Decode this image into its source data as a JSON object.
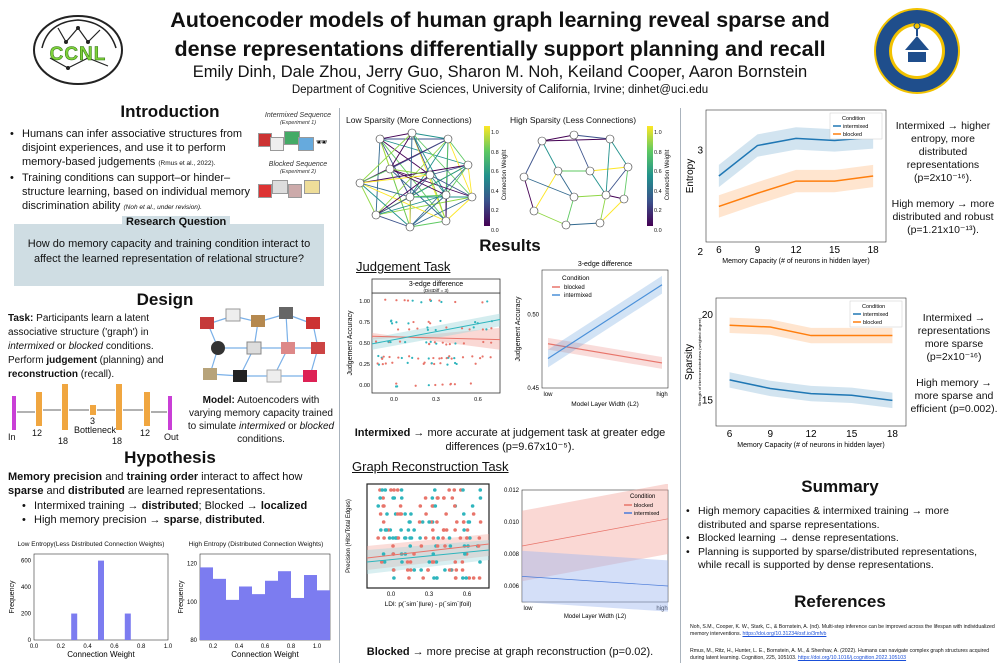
{
  "header": {
    "title_line1": "Autoencoder models of human graph learning reveal sparse and",
    "title_line2": "dense representations differentially support planning and recall",
    "authors": "Emily Dinh, Dale Zhou, Jerry Guo, Sharon M. Noh, Keiland Cooper, Aaron Bornstein",
    "affiliation": "Department of Cognitive Sciences, University of California, Irvine; dinhet@uci.edu",
    "lab_logo_text": "CCNL",
    "seal_text": "UNIVERSITY OF CALIFORNIA · IRVINE · 1965"
  },
  "intro": {
    "heading": "Introduction",
    "bullet1": "Humans can infer associative structures from disjoint experiences, and use it to perform memory-based judgements",
    "bullet1_cite": "(Rmus et al., 2022).",
    "bullet2": "Training conditions can support–or hinder–structure learning, based on individual memory discrimination ability",
    "bullet2_cite": "(Noh et al., under revision).",
    "seq1_label": "Intermixed Sequence",
    "seq1_sub": "(Experiment 1)",
    "seq2_label": "Blocked Sequence",
    "seq2_sub": "(Experiment 2)"
  },
  "research_question": {
    "label": "Research Question",
    "text": "How do memory capacity and training condition interact to affect the learned representation of relational structure?"
  },
  "design": {
    "heading": "Design",
    "task_bold": "Task:",
    "task_text": " Participants learn a latent associative structure ('graph') in ",
    "task_i1": "intermixed",
    "task_or": " or ",
    "task_i2": "blocked",
    "task_cond": " conditions. Perform ",
    "task_j": "judgement",
    "task_plan": " (planning) and ",
    "task_r": "reconstruction",
    "task_recall": " (recall).",
    "arch_labels": [
      "In",
      "12",
      "18",
      "3",
      "18",
      "12",
      "Out"
    ],
    "bottleneck": "Bottleneck",
    "model_bold": "Model:",
    "model_text": " Autoencoders with varying memory capacity trained to simulate ",
    "model_i1": "intermixed",
    "model_or": " or ",
    "model_i2": "blocked",
    "model_end": " conditions."
  },
  "hypothesis": {
    "heading": "Hypothesis",
    "lead_b1": "Memory precision",
    "lead_and": " and ",
    "lead_b2": "training order",
    "lead_rest": " interact to affect how ",
    "lead_b3": "sparse",
    "lead_and2": " and ",
    "lead_b4": "distributed",
    "lead_end": " are learned representations.",
    "h1_a": "Intermixed training → ",
    "h1_b": "distributed",
    "h1_c": "; Blocked → ",
    "h1_d": "localized",
    "h2_a": "High memory precision → ",
    "h2_b": "sparse",
    "h2_c": ", ",
    "h2_d": "distributed",
    "h2_e": "."
  },
  "hist_low": {
    "title": "Low Entropy(Less Distributed Connection Weights)",
    "xlabel": "Connection Weight",
    "ylabel": "Frequency",
    "yticks": [
      "0",
      "200",
      "400",
      "600"
    ],
    "xticks": [
      "0.0",
      "0.2",
      "0.4",
      "0.6",
      "0.8",
      "1.0"
    ]
  },
  "hist_high": {
    "title": "High Entropy (Distributed Connection Weights)",
    "xlabel": "Connection Weight",
    "ylabel": "Frequency",
    "yticks": [
      "80",
      "100",
      "120"
    ],
    "xticks": [
      "0.2",
      "0.4",
      "0.6",
      "0.8",
      "1.0"
    ]
  },
  "graphs": {
    "low_title": "Low Sparsity (More Connections)",
    "high_title": "High Sparsity (Less Connections)",
    "cbar_label": "Connection Weight",
    "cbar_ticks": [
      "0.0",
      "0.2",
      "0.4",
      "0.6",
      "0.8",
      "1.0"
    ]
  },
  "results": {
    "heading": "Results",
    "judgement_heading": "Judgement Task",
    "j_left_title1": "3-edge difference",
    "j_left_title2": "(DistDiff = 3)",
    "j_left_ylabel": "Judgement Accuracy",
    "j_right_title": "3-edge difference",
    "j_right_ylabel": "Judgement Accuracy",
    "j_right_xlabel": "Model Layer Width (L2)",
    "j_legend_title": "Condition",
    "j_legend_blocked": "blocked",
    "j_legend_intermixed": "intermixed",
    "j_conclusion_b": "Intermixed",
    "j_conclusion": " → more accurate at judgement task at greater edge differences (p=9.67x10⁻⁵).",
    "recon_heading": "Graph Reconstruction Task",
    "r_ylabel": "Precision (Hits/Total Edges)",
    "r_xlabel": "LDI: p(`sim`|lure) - p(`sim`|foil)",
    "r_right_xlabel": "Model Layer Width (L2)",
    "r_legend_title": "Condition",
    "r_legend_blocked": "blocked",
    "r_legend_intermixed": "intermixed",
    "r_conclusion_b": "Blocked",
    "r_conclusion": " → more precise at graph reconstruction (p=0.02)."
  },
  "entropy_panel": {
    "ylabel": "Entropy",
    "xlabel": "Memory Capacity (# of neurons in hidden layer)",
    "xticks": [
      "6",
      "9",
      "12",
      "15",
      "18"
    ],
    "yticks": [
      "2",
      "3"
    ],
    "legend_title": "Condition",
    "legend_intermixed": "intermixed",
    "legend_blocked": "blocked",
    "note1": "Intermixed → higher entropy, more distributed representations (p=2x10⁻¹⁶).",
    "note2": "High memory → more distributed and robust (p=1.21x10⁻¹³)."
  },
  "sparsity_panel": {
    "ylabel": "Sparsity",
    "ylabel_small": "Strength of interconnectedness (weighted degree)",
    "xlabel": "Memory Capacity (# of neurons in hidden layer)",
    "xticks": [
      "6",
      "9",
      "12",
      "15",
      "18"
    ],
    "yticks": [
      "15",
      "20"
    ],
    "legend_title": "Condition",
    "legend_intermixed": "intermixed",
    "legend_blocked": "blocked",
    "note1": "Intermixed → representations more sparse (p=2x10⁻¹⁶)",
    "note2": "High memory → more sparse and efficient (p=0.002)."
  },
  "summary": {
    "heading": "Summary",
    "b1": "High memory capacities & intermixed training → more distributed and sparse representations.",
    "b2": "Blocked learning → dense representations.",
    "b3": "Planning is supported by sparse/distributed representations, while recall is supported by dense representations."
  },
  "references": {
    "heading": "References",
    "r1": "Noh, S.M., Cooper, K. W., Stark, C., & Bornstein, A. (nd). Multi-step inference can be improved across the lifespan with individualized memory interventions.",
    "r1_link": "https://doi.org/10.31234/osf.io/3mfvb",
    "r2": "Rmus, M., Ritz, H., Hunter, L. E., Bornstein, A. M., & Shenhav, A. (2022). Humans can navigate complex graph structures acquired during latent learning. Cognition, 225, 105103.",
    "r2_link": "https://doi.org/10.1016/j.cognition.2022.105103"
  },
  "colors": {
    "blue": "#1f77b4",
    "orange": "#ff7f0e",
    "hist_fill": "#7c7cf0",
    "rq_bg": "#cfdde3",
    "layer": "#f0a640",
    "input_layer": "#c93fd6"
  },
  "chart_data": [
    {
      "type": "bar",
      "id": "hist_low",
      "title": "Low Entropy(Less Distributed Connection Weights)",
      "xlabel": "Connection Weight",
      "ylabel": "Frequency",
      "categories": [
        "0.3",
        "0.5",
        "0.7"
      ],
      "values": [
        200,
        600,
        200
      ],
      "ylim": [
        0,
        650
      ]
    },
    {
      "type": "bar",
      "id": "hist_high",
      "title": "High Entropy (Distributed Connection Weights)",
      "xlabel": "Connection Weight",
      "ylabel": "Frequency",
      "categories": [
        "0.15",
        "0.25",
        "0.35",
        "0.45",
        "0.55",
        "0.65",
        "0.75",
        "0.85",
        "0.95",
        "1.05"
      ],
      "values": [
        118,
        112,
        101,
        108,
        104,
        111,
        116,
        102,
        114,
        106
      ],
      "ylim": [
        80,
        125
      ]
    },
    {
      "type": "line",
      "id": "entropy",
      "xlabel": "Memory Capacity (# of neurons in hidden layer)",
      "ylabel": "Entropy",
      "x": [
        6,
        9,
        12,
        15,
        18
      ],
      "series": [
        {
          "name": "intermixed",
          "values": [
            2.75,
            3.05,
            3.12,
            3.1,
            3.13
          ]
        },
        {
          "name": "blocked",
          "values": [
            2.45,
            2.58,
            2.7,
            2.7,
            2.75
          ]
        }
      ],
      "ylim": [
        2.1,
        3.4
      ]
    },
    {
      "type": "line",
      "id": "sparsity",
      "xlabel": "Memory Capacity (# of neurons in hidden layer)",
      "ylabel": "Sparsity",
      "x": [
        6,
        9,
        12,
        15,
        18
      ],
      "series": [
        {
          "name": "intermixed",
          "values": [
            16.2,
            15.7,
            15.4,
            15.3,
            15.0
          ]
        },
        {
          "name": "blocked",
          "values": [
            19.4,
            19.3,
            18.8,
            18.8,
            18.8
          ]
        }
      ],
      "ylim": [
        13.5,
        21
      ]
    },
    {
      "type": "line",
      "id": "judgement_width",
      "title": "3-edge difference",
      "xlabel": "Model Layer Width (L2)",
      "ylabel": "Judgement Accuracy",
      "categories": [
        "low",
        "high"
      ],
      "series": [
        {
          "name": "blocked",
          "values": [
            0.48,
            0.467
          ]
        },
        {
          "name": "intermixed",
          "values": [
            0.47,
            0.52
          ]
        }
      ],
      "ylim": [
        0.45,
        0.53
      ]
    },
    {
      "type": "line",
      "id": "recon_width",
      "xlabel": "Model Layer Width (L2)",
      "categories": [
        "low",
        "high"
      ],
      "series": [
        {
          "name": "blocked",
          "values": [
            0.0085,
            0.0102
          ]
        },
        {
          "name": "intermixed",
          "values": [
            0.0066,
            0.006
          ]
        }
      ],
      "ylim": [
        0.005,
        0.012
      ]
    }
  ]
}
